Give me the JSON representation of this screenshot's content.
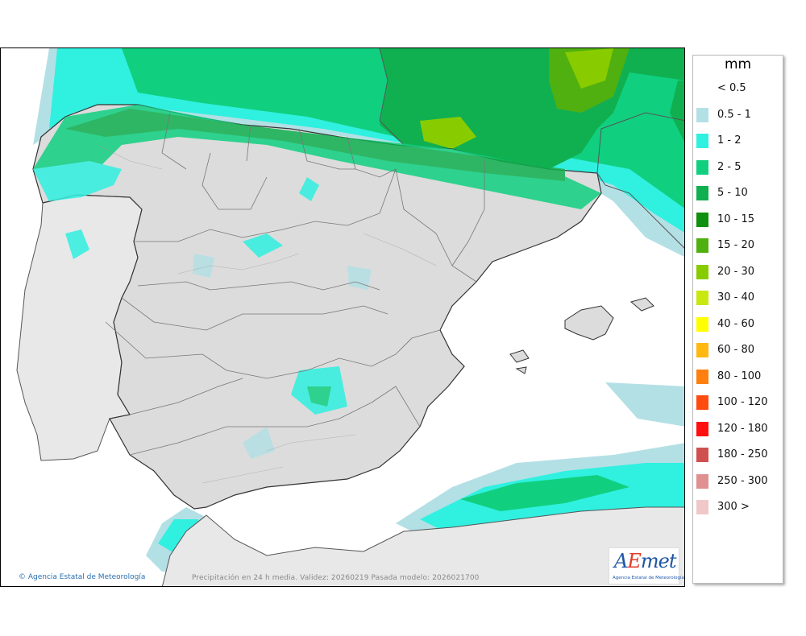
{
  "legend": {
    "title": "mm",
    "items": [
      {
        "label": "< 0.5",
        "color": "#ffffff"
      },
      {
        "label": "0.5 - 1",
        "color": "#b3e0e5"
      },
      {
        "label": "1 - 2",
        "color": "#30f0e0"
      },
      {
        "label": "2 - 5",
        "color": "#10d080"
      },
      {
        "label": "5 - 10",
        "color": "#10b050"
      },
      {
        "label": "10 - 15",
        "color": "#109010"
      },
      {
        "label": "15 - 20",
        "color": "#50b010"
      },
      {
        "label": "20 - 30",
        "color": "#88cc00"
      },
      {
        "label": "30 - 40",
        "color": "#c8e810"
      },
      {
        "label": "40 - 60",
        "color": "#ffff00"
      },
      {
        "label": "60 - 80",
        "color": "#ffb810"
      },
      {
        "label": "80 - 100",
        "color": "#ff8010"
      },
      {
        "label": "100 - 120",
        "color": "#ff4a10"
      },
      {
        "label": "120 - 180",
        "color": "#ff1010"
      },
      {
        "label": "180 - 250",
        "color": "#d05050"
      },
      {
        "label": "250 - 300",
        "color": "#e09090"
      },
      {
        "label": "300 >",
        "color": "#f0c8c8"
      }
    ]
  },
  "footer": {
    "copyright": "Agencia Estatal de Meteorología",
    "caption": "Precipitación en 24 h media. Validez: 20260219 Pasada modelo: 2026021700"
  },
  "logo": {
    "word_a": "A",
    "word_e": "E",
    "word_rest": "met",
    "subtitle": "Agencia Estatal de Meteorología"
  },
  "colors": {
    "land": "#dcdcdc",
    "portugal": "#e8e8e8",
    "sea": "#ffffff",
    "border": "#333333"
  }
}
